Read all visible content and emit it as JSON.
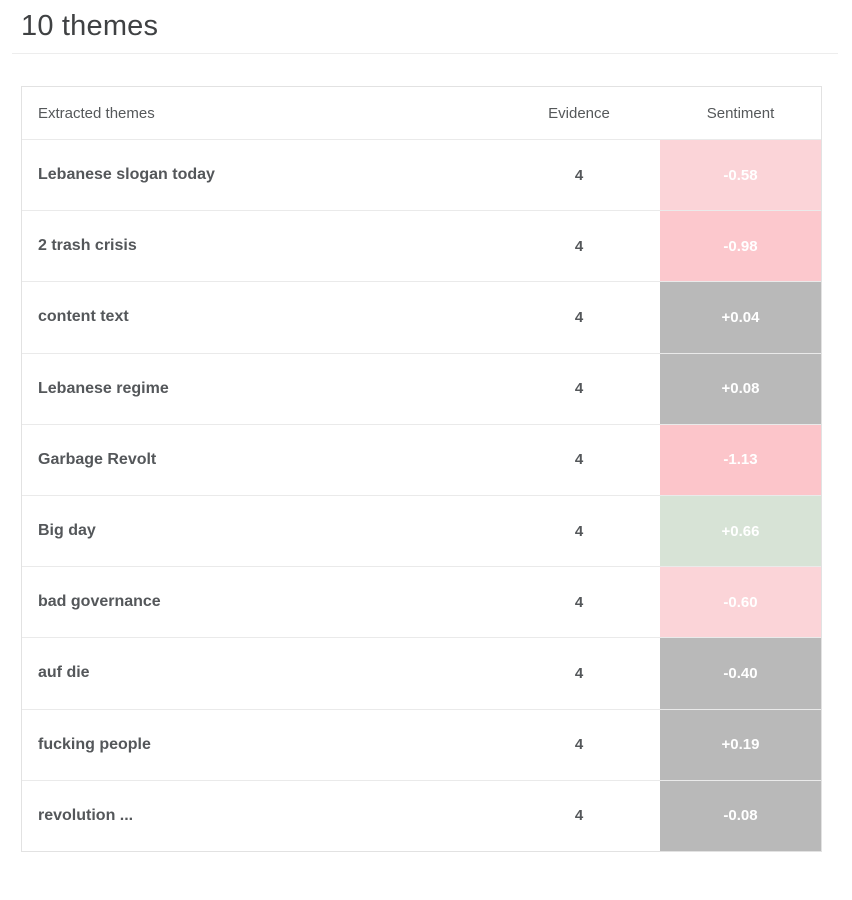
{
  "page": {
    "title": "10 themes"
  },
  "table": {
    "headers": {
      "theme": "Extracted themes",
      "evidence": "Evidence",
      "sentiment": "Sentiment"
    },
    "rows": [
      {
        "theme": "Lebanese slogan today",
        "evidence": "4",
        "sentiment": "-0.58",
        "color": "#fbd4d8"
      },
      {
        "theme": "2 trash crisis",
        "evidence": "4",
        "sentiment": "-0.98",
        "color": "#fcc8cd"
      },
      {
        "theme": "content text",
        "evidence": "4",
        "sentiment": "+0.04",
        "color": "#b9b9b9"
      },
      {
        "theme": "Lebanese regime",
        "evidence": "4",
        "sentiment": "+0.08",
        "color": "#b9b9b9"
      },
      {
        "theme": "Garbage Revolt",
        "evidence": "4",
        "sentiment": "-1.13",
        "color": "#fcc5ca"
      },
      {
        "theme": "Big day",
        "evidence": "4",
        "sentiment": "+0.66",
        "color": "#d7e3d6"
      },
      {
        "theme": "bad governance",
        "evidence": "4",
        "sentiment": "-0.60",
        "color": "#fbd4d8"
      },
      {
        "theme": "auf die",
        "evidence": "4",
        "sentiment": "-0.40",
        "color": "#b9b9b9"
      },
      {
        "theme": "fucking people",
        "evidence": "4",
        "sentiment": "+0.19",
        "color": "#b9b9b9"
      },
      {
        "theme": "revolution ...",
        "evidence": "4",
        "sentiment": "-0.08",
        "color": "#b9b9b9"
      }
    ]
  }
}
